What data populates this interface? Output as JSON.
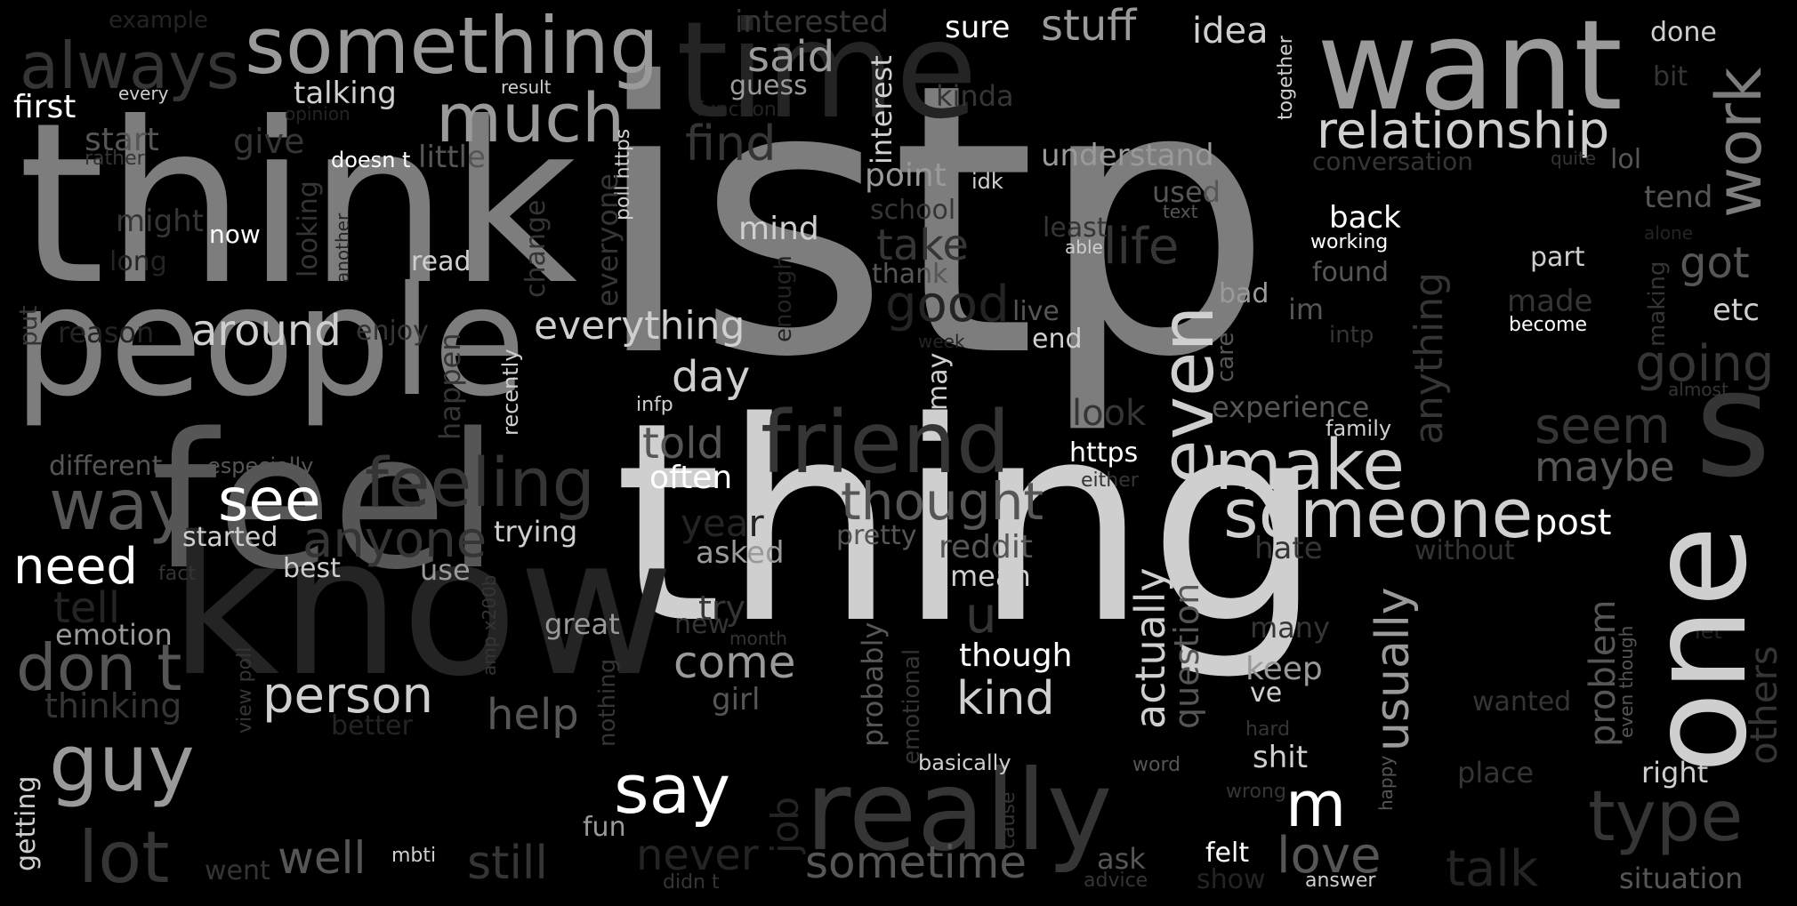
{
  "colors": {
    "background": "#000000",
    "white": "#ffffff",
    "light_gray": "#cfcfcf",
    "mid_gray": "#9a9a9a",
    "gray": "#7d7d7d",
    "dark_gray": "#565656",
    "dim_gray": "#353535",
    "faint_gray": "#242424"
  },
  "words": [
    {
      "text": "think"
    },
    {
      "text": "istp"
    },
    {
      "text": "thing"
    },
    {
      "text": "people"
    },
    {
      "text": "feel"
    },
    {
      "text": "know"
    },
    {
      "text": "time"
    },
    {
      "text": "want"
    },
    {
      "text": "one"
    },
    {
      "text": "really"
    },
    {
      "text": "friend"
    },
    {
      "text": "s"
    },
    {
      "text": "something"
    },
    {
      "text": "always"
    },
    {
      "text": "much"
    },
    {
      "text": "feeling"
    },
    {
      "text": "way"
    },
    {
      "text": "see"
    },
    {
      "text": "guy"
    },
    {
      "text": "don t"
    },
    {
      "text": "lot"
    },
    {
      "text": "say"
    },
    {
      "text": "person"
    },
    {
      "text": "need"
    },
    {
      "text": "make"
    },
    {
      "text": "someone"
    },
    {
      "text": "even"
    },
    {
      "text": "work"
    },
    {
      "text": "relationship"
    },
    {
      "text": "type"
    },
    {
      "text": "love"
    },
    {
      "text": "m"
    },
    {
      "text": "stuff"
    },
    {
      "text": "said"
    },
    {
      "text": "sure"
    },
    {
      "text": "idea"
    },
    {
      "text": "done"
    },
    {
      "text": "interested"
    },
    {
      "text": "example"
    },
    {
      "text": "first"
    },
    {
      "text": "every"
    },
    {
      "text": "talking"
    },
    {
      "text": "result"
    },
    {
      "text": "guess"
    },
    {
      "text": "function"
    },
    {
      "text": "kinda"
    },
    {
      "text": "opinion"
    },
    {
      "text": "give"
    },
    {
      "text": "start"
    },
    {
      "text": "rather"
    },
    {
      "text": "doesn t"
    },
    {
      "text": "little"
    },
    {
      "text": "find"
    },
    {
      "text": "interest"
    },
    {
      "text": "point"
    },
    {
      "text": "idk"
    },
    {
      "text": "understand"
    },
    {
      "text": "conversation"
    },
    {
      "text": "quite"
    },
    {
      "text": "lol"
    },
    {
      "text": "bit"
    },
    {
      "text": "tend"
    },
    {
      "text": "might"
    },
    {
      "text": "now"
    },
    {
      "text": "long"
    },
    {
      "text": "read"
    },
    {
      "text": "mind"
    },
    {
      "text": "school"
    },
    {
      "text": "used"
    },
    {
      "text": "text"
    },
    {
      "text": "back"
    },
    {
      "text": "working"
    },
    {
      "text": "least"
    },
    {
      "text": "able"
    },
    {
      "text": "take"
    },
    {
      "text": "life"
    },
    {
      "text": "thank"
    },
    {
      "text": "found"
    },
    {
      "text": "part"
    },
    {
      "text": "got"
    },
    {
      "text": "alone"
    },
    {
      "text": "good"
    },
    {
      "text": "live"
    },
    {
      "text": "end"
    },
    {
      "text": "bad"
    },
    {
      "text": "im"
    },
    {
      "text": "intp"
    },
    {
      "text": "made"
    },
    {
      "text": "become"
    },
    {
      "text": "etc"
    },
    {
      "text": "around"
    },
    {
      "text": "reason"
    },
    {
      "text": "enjoy"
    },
    {
      "text": "everything"
    },
    {
      "text": "week"
    },
    {
      "text": "going"
    },
    {
      "text": "day"
    },
    {
      "text": "infp"
    },
    {
      "text": "look"
    },
    {
      "text": "experience"
    },
    {
      "text": "almost"
    },
    {
      "text": "told"
    },
    {
      "text": "family"
    },
    {
      "text": "seem"
    },
    {
      "text": "maybe"
    },
    {
      "text": "different"
    },
    {
      "text": "especially"
    },
    {
      "text": "often"
    },
    {
      "text": "https"
    },
    {
      "text": "either"
    },
    {
      "text": "thought"
    },
    {
      "text": "anyone"
    },
    {
      "text": "started"
    },
    {
      "text": "trying"
    },
    {
      "text": "year"
    },
    {
      "text": "pretty"
    },
    {
      "text": "reddit"
    },
    {
      "text": "post"
    },
    {
      "text": "best"
    },
    {
      "text": "use"
    },
    {
      "text": "fact"
    },
    {
      "text": "asked"
    },
    {
      "text": "mean"
    },
    {
      "text": "hate"
    },
    {
      "text": "without"
    },
    {
      "text": "tell"
    },
    {
      "text": "try"
    },
    {
      "text": "u"
    },
    {
      "text": "emotion"
    },
    {
      "text": "great"
    },
    {
      "text": "new"
    },
    {
      "text": "month"
    },
    {
      "text": "many"
    },
    {
      "text": "let"
    },
    {
      "text": "come"
    },
    {
      "text": "though"
    },
    {
      "text": "keep"
    },
    {
      "text": "ve"
    },
    {
      "text": "thinking"
    },
    {
      "text": "help"
    },
    {
      "text": "girl"
    },
    {
      "text": "kind"
    },
    {
      "text": "wanted"
    },
    {
      "text": "better"
    },
    {
      "text": "hard"
    },
    {
      "text": "basically"
    },
    {
      "text": "word"
    },
    {
      "text": "shit"
    },
    {
      "text": "place"
    },
    {
      "text": "right"
    },
    {
      "text": "wrong"
    },
    {
      "text": "fun"
    },
    {
      "text": "never"
    },
    {
      "text": "went"
    },
    {
      "text": "well"
    },
    {
      "text": "mbti"
    },
    {
      "text": "still"
    },
    {
      "text": "sometime"
    },
    {
      "text": "ask"
    },
    {
      "text": "felt"
    },
    {
      "text": "talk"
    },
    {
      "text": "situation"
    },
    {
      "text": "didn t"
    },
    {
      "text": "advice"
    },
    {
      "text": "show"
    },
    {
      "text": "answer"
    },
    {
      "text": "together"
    },
    {
      "text": "poll https"
    },
    {
      "text": "looking"
    },
    {
      "text": "another"
    },
    {
      "text": "change"
    },
    {
      "text": "everyone"
    },
    {
      "text": "enough"
    },
    {
      "text": "put"
    },
    {
      "text": "happen"
    },
    {
      "text": "recently"
    },
    {
      "text": "may"
    },
    {
      "text": "care"
    },
    {
      "text": "anything"
    },
    {
      "text": "making"
    },
    {
      "text": "actually"
    },
    {
      "text": "question"
    },
    {
      "text": "usually"
    },
    {
      "text": "problem"
    },
    {
      "text": "even though"
    },
    {
      "text": "others"
    },
    {
      "text": "view poll"
    },
    {
      "text": "amp x200b"
    },
    {
      "text": "nothing"
    },
    {
      "text": "probably"
    },
    {
      "text": "emotional"
    },
    {
      "text": "job"
    },
    {
      "text": "cause"
    },
    {
      "text": "happy"
    },
    {
      "text": "getting"
    }
  ]
}
